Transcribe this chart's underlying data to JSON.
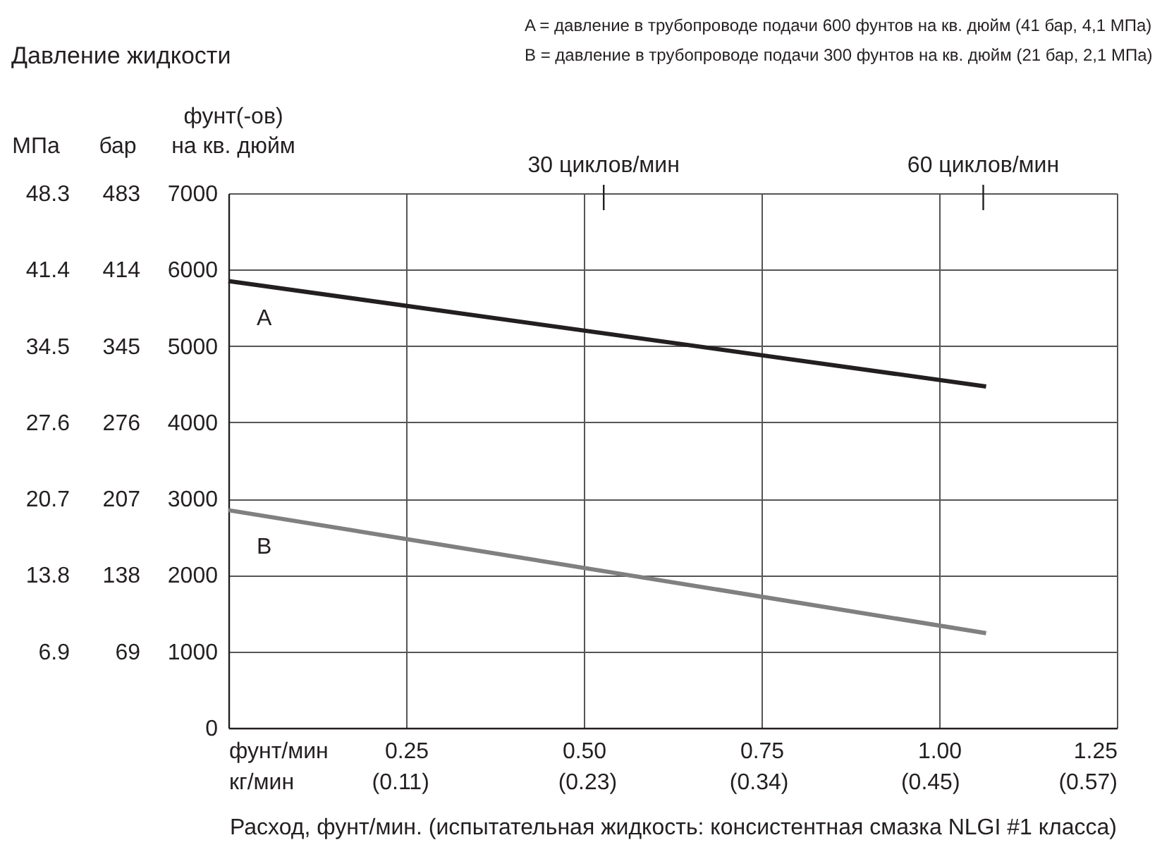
{
  "chart_data": {
    "type": "line",
    "title": "Давление жидкости",
    "annotations": [
      "A = давление в трубопроводе подачи 600 фунтов на кв. дюйм (41 бар, 4,1 МПа)",
      "B = давление в трубопроводе подачи 300 фунтов на кв. дюйм (21 бар, 2,1 МПа)"
    ],
    "ref_lines": [
      {
        "axis": "x",
        "value": 0.528,
        "label": "30 циклов/мин"
      },
      {
        "axis": "x",
        "value": 1.062,
        "label": "60 циклов/мин"
      }
    ],
    "xlabel": "Расход, фунт/мин. (испытательная жидкость: консистентная смазка NLGI #1 класса)",
    "ylabel": "фунт(-ов)\nна кв. дюйм",
    "y2label": "бар",
    "y3label": "МПа",
    "x": [
      0,
      1.066
    ],
    "series": [
      {
        "name": "A",
        "color": "#231f20",
        "values": [
          5850,
          4470
        ]
      },
      {
        "name": "B",
        "color": "#808080",
        "values": [
          2850,
          1240
        ]
      }
    ],
    "xlim": [
      0,
      1.25
    ],
    "xticks": [
      {
        "value": 0,
        "label": "фунт/мин"
      },
      0.25,
      {
        "value": 0.5,
        "label": "0.50"
      },
      0.75,
      {
        "value": 1,
        "label": "1.00"
      },
      1.25
    ],
    "x2lim": [
      0,
      0.57
    ],
    "x2ticks": [
      {
        "value": 0,
        "label": "кг/мин"
      },
      {
        "value": 0.11,
        "label": "(0.11)"
      },
      {
        "value": 0.23,
        "label": "(0.23)"
      },
      {
        "value": 0.34,
        "label": "(0.34)"
      },
      {
        "value": 0.45,
        "label": "(0.45)"
      },
      {
        "value": 0.57,
        "label": "(0.57)"
      }
    ],
    "ylim": [
      0,
      7000
    ],
    "yticks": [
      0,
      1000,
      2000,
      3000,
      4000,
      5000,
      6000,
      7000
    ],
    "y2lim": [
      0,
      483
    ],
    "y2ticks": [
      69,
      138,
      207,
      276,
      345,
      414,
      483
    ],
    "y3lim": [
      0,
      48.3
    ],
    "y3ticks": [
      6.9,
      13.8,
      20.7,
      27.6,
      34.5,
      41.4,
      48.3
    ],
    "grid": true,
    "legend": false,
    "marker": "none",
    "line_style": "solid"
  }
}
